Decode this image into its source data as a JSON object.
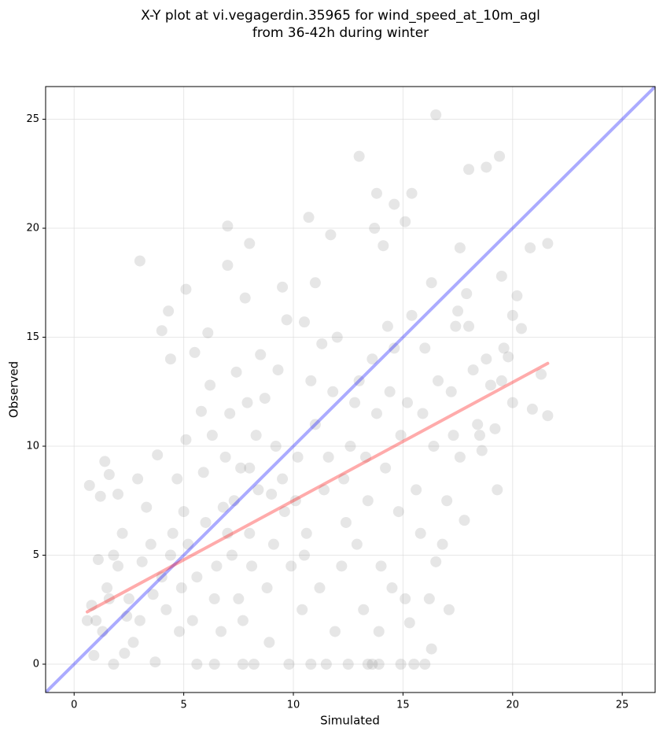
{
  "chart_data": {
    "type": "scatter",
    "title": [
      "X-Y plot at vi.vegagerdin.35965 for wind_speed_at_10m_agl",
      "from 36-42h during winter"
    ],
    "xlabel": "Simulated",
    "ylabel": "Observed",
    "xlim": [
      -1.3,
      26.5
    ],
    "ylim": [
      -1.3,
      26.5
    ],
    "xticks": [
      0,
      5,
      10,
      15,
      20,
      25
    ],
    "yticks": [
      0,
      5,
      10,
      15,
      20,
      25
    ],
    "grid": true,
    "color": "#808080",
    "opacity": 0.2,
    "x": [
      16.5,
      13.0,
      19.4,
      18.0,
      18.8,
      13.8,
      15.4,
      14.6,
      10.7,
      7.0,
      15.1,
      13.7,
      8.0,
      3.0,
      7.0,
      11.7,
      14.1,
      21.6,
      17.6,
      20.8,
      5.1,
      9.5,
      11.0,
      7.8,
      16.3,
      17.9,
      4.3,
      4.0,
      6.1,
      10.5,
      20.0,
      19.5,
      5.5,
      4.4,
      7.4,
      21.6,
      20.9,
      21.3,
      19.3,
      17.1,
      13.4,
      13.6,
      13.9,
      14.9,
      15.5,
      16.0,
      10.8,
      9.8,
      11.5,
      12.5,
      7.7,
      8.2,
      3.7,
      1.8,
      6.4,
      5.6,
      0.7,
      1.4,
      1.6,
      2.0,
      1.2,
      0.8,
      1.0,
      1.5,
      2.0,
      2.5,
      3.0,
      3.5,
      4.0,
      4.5,
      2.2,
      1.8,
      3.3,
      4.7,
      3.8,
      2.7,
      1.3,
      0.9,
      4.2,
      4.8,
      3.1,
      2.4,
      1.6,
      3.6,
      4.4,
      2.9,
      0.6,
      1.1,
      2.3,
      4.9,
      5.2,
      5.6,
      6.0,
      6.4,
      6.8,
      7.2,
      7.6,
      8.0,
      8.4,
      8.8,
      9.2,
      9.6,
      5.4,
      5.9,
      6.3,
      6.7,
      7.1,
      7.5,
      7.9,
      8.3,
      8.7,
      9.1,
      9.5,
      9.9,
      5.1,
      5.8,
      6.2,
      6.9,
      7.3,
      7.7,
      8.1,
      8.5,
      8.9,
      9.3,
      9.7,
      5.0,
      6.5,
      7.0,
      8.0,
      9.0,
      10.2,
      10.6,
      11.0,
      11.4,
      11.8,
      12.2,
      12.6,
      13.0,
      13.4,
      13.8,
      14.2,
      14.6,
      10.4,
      10.8,
      11.2,
      11.6,
      12.0,
      12.4,
      12.8,
      13.2,
      13.6,
      14.0,
      14.4,
      14.8,
      10.1,
      11.3,
      12.3,
      13.3,
      14.3,
      14.9,
      10.5,
      11.9,
      12.9,
      13.9,
      14.5,
      15.2,
      15.6,
      16.0,
      16.4,
      16.8,
      17.2,
      17.6,
      18.0,
      18.4,
      18.8,
      19.2,
      19.6,
      20.0,
      20.4,
      15.4,
      15.8,
      16.2,
      16.6,
      17.0,
      17.4,
      17.8,
      18.2,
      18.6,
      15.1,
      15.9,
      16.5,
      17.3,
      19.0,
      19.8,
      20.2,
      15.3,
      16.3,
      17.5,
      18.5,
      19.5
    ],
    "y": [
      25.2,
      23.3,
      23.3,
      22.7,
      22.8,
      21.6,
      21.6,
      21.1,
      20.5,
      20.1,
      20.3,
      20.0,
      19.3,
      18.5,
      18.3,
      19.7,
      19.2,
      19.3,
      19.1,
      19.1,
      17.2,
      17.3,
      17.5,
      16.8,
      17.5,
      17.0,
      16.2,
      15.3,
      15.2,
      15.7,
      16.0,
      17.8,
      14.3,
      14.0,
      13.4,
      11.4,
      11.7,
      13.3,
      8.0,
      2.5,
      0,
      0,
      0,
      0,
      0,
      0,
      0,
      0,
      0,
      0,
      0,
      0,
      0.1,
      0,
      0,
      0,
      8.2,
      9.3,
      8.7,
      7.8,
      7.7,
      2.7,
      2.0,
      3.5,
      4.5,
      3.0,
      2.0,
      5.5,
      4.0,
      6.0,
      6.0,
      5.0,
      7.2,
      8.5,
      9.6,
      1.0,
      1.5,
      0.4,
      2.5,
      1.5,
      4.7,
      2.2,
      3.0,
      3.2,
      5.0,
      8.5,
      2.0,
      4.8,
      0.5,
      3.5,
      5.5,
      4.0,
      6.5,
      3.0,
      7.2,
      5.0,
      9.0,
      6.0,
      8.0,
      3.5,
      10.0,
      7.0,
      2.0,
      8.8,
      10.5,
      1.5,
      11.5,
      3.0,
      12.0,
      10.5,
      12.2,
      5.5,
      8.5,
      4.5,
      10.3,
      11.6,
      12.8,
      9.5,
      7.5,
      2.0,
      4.5,
      14.2,
      1.0,
      13.5,
      15.8,
      7.0,
      4.5,
      6.0,
      9.0,
      7.8,
      9.5,
      6.0,
      11.0,
      8.0,
      12.5,
      4.5,
      10.0,
      13.0,
      7.5,
      11.5,
      9.0,
      14.5,
      2.5,
      13.0,
      3.5,
      9.5,
      15.0,
      6.5,
      12.0,
      2.5,
      14.0,
      4.5,
      12.5,
      7.0,
      7.5,
      14.7,
      8.5,
      9.5,
      15.5,
      10.5,
      5.0,
      1.5,
      5.5,
      1.5,
      3.5,
      12.0,
      8.0,
      14.5,
      10.0,
      5.5,
      12.5,
      9.5,
      15.5,
      11.0,
      14.0,
      10.8,
      14.5,
      12.0,
      15.4,
      16.0,
      6.0,
      3.0,
      13.0,
      7.5,
      15.5,
      6.6,
      13.5,
      9.8,
      3.0,
      11.5,
      4.7,
      10.5,
      12.8,
      14.1,
      16.9,
      1.9,
      0.7,
      16.2,
      10.5,
      13.0
    ],
    "lines": [
      {
        "color": "#0000ff",
        "x": [
          -1.3,
          26.5
        ],
        "y": [
          -1.3,
          26.5
        ]
      },
      {
        "color": "#ff0000",
        "x": [
          0.6,
          21.6
        ],
        "y": [
          2.4,
          13.8
        ]
      }
    ]
  }
}
